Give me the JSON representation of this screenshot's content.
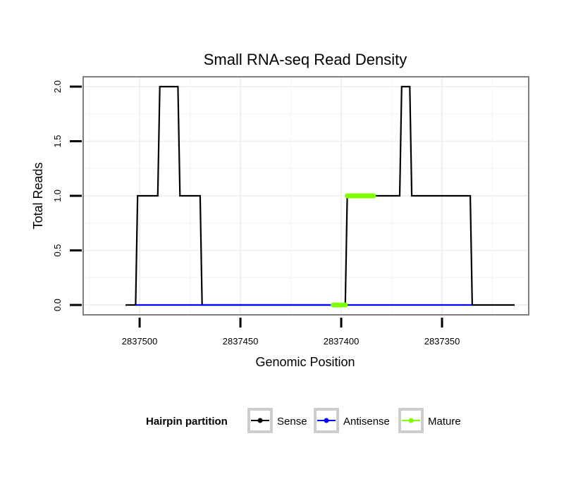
{
  "chart_data": {
    "type": "line",
    "title": "Small RNA-seq Read Density",
    "xlabel": "Genomic Position",
    "ylabel": "Total Reads",
    "x_reversed": true,
    "xlim": [
      2837528,
      2837307
    ],
    "ylim": [
      -0.09,
      2.09
    ],
    "x_ticks": [
      2837500,
      2837450,
      2837400,
      2837350
    ],
    "x_tick_labels": [
      "2837500",
      "2837450",
      "2837400",
      "2837350"
    ],
    "y_ticks": [
      0.0,
      0.5,
      1.0,
      1.5,
      2.0
    ],
    "y_tick_labels": [
      "0.0",
      "0.5",
      "1.0",
      "1.5",
      "2.0"
    ],
    "grid": true,
    "legend": {
      "title": "Hairpin partition",
      "position": "bottom",
      "entries": [
        {
          "label": "Sense",
          "color": "#000000"
        },
        {
          "label": "Antisense",
          "color": "#0000ff"
        },
        {
          "label": "Mature",
          "color": "#7fff00"
        }
      ]
    },
    "series": [
      {
        "name": "Sense",
        "color": "#000000",
        "x": [
          2837507,
          2837502,
          2837501,
          2837491,
          2837490,
          2837481,
          2837480,
          2837470,
          2837469,
          2837398,
          2837397,
          2837371,
          2837370,
          2837366,
          2837365,
          2837355,
          2837354,
          2837336,
          2837335,
          2837314
        ],
        "y": [
          0,
          0,
          1,
          1,
          2,
          2,
          1,
          1,
          0,
          0,
          1,
          1,
          2,
          2,
          1,
          1,
          1,
          1,
          0,
          0
        ]
      },
      {
        "name": "Antisense",
        "color": "#0000ff",
        "x": [
          2837502,
          2837469,
          2837397,
          2837335
        ],
        "y": [
          0,
          0,
          0,
          0
        ]
      },
      {
        "name": "Mature",
        "color": "#7fff00",
        "segments": [
          {
            "x": [
              2837404,
              2837398
            ],
            "y": [
              0,
              0
            ]
          },
          {
            "x": [
              2837397,
              2837384
            ],
            "y": [
              1,
              1
            ]
          }
        ]
      }
    ]
  }
}
